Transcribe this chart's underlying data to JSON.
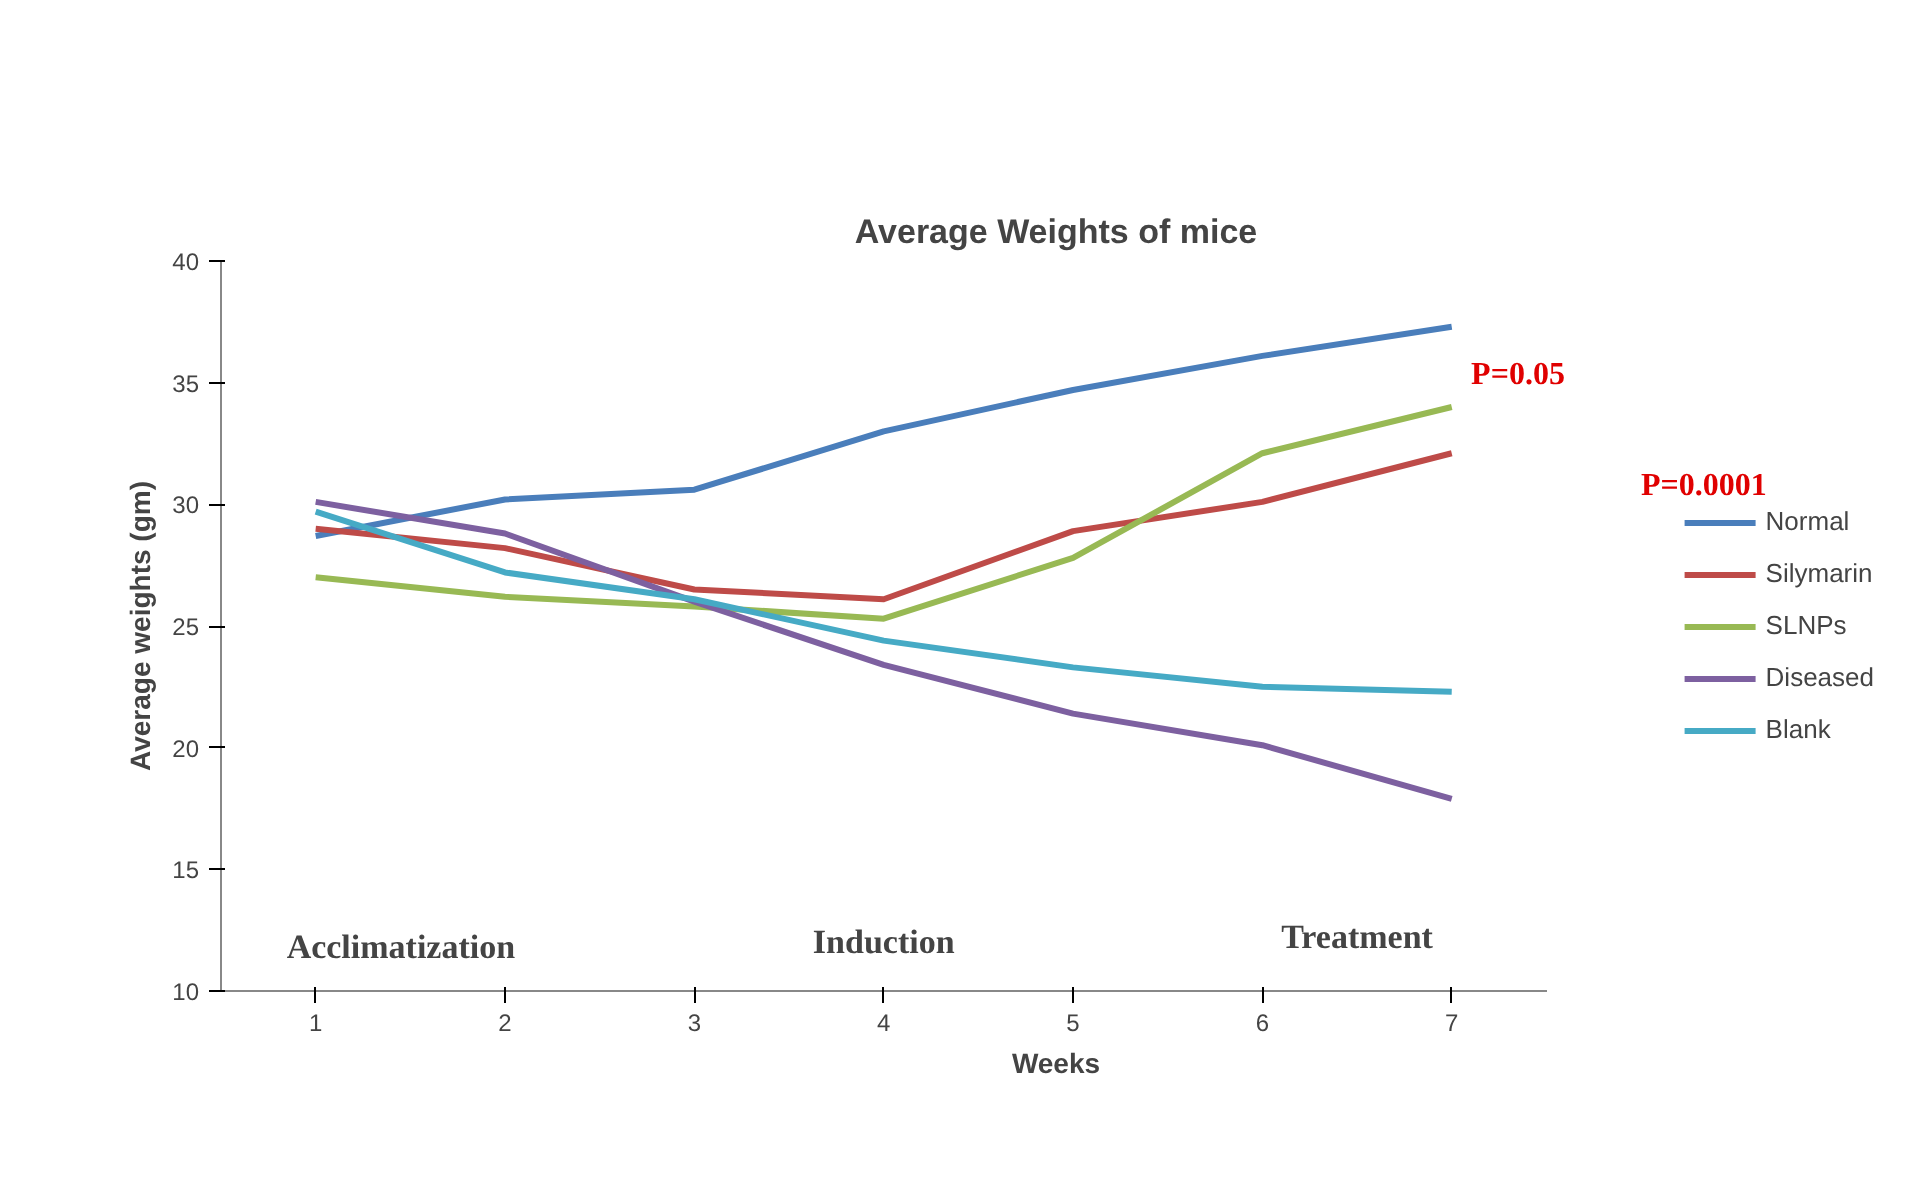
{
  "chart_data": {
    "type": "line",
    "title": "Average Weights of mice",
    "xlabel": "Weeks",
    "ylabel": "Average weights (gm)",
    "x": [
      1,
      2,
      3,
      4,
      5,
      6,
      7
    ],
    "xlim": [
      0.5,
      7.5
    ],
    "xticks": [
      1,
      2,
      3,
      4,
      5,
      6,
      7
    ],
    "ylim": [
      10,
      40
    ],
    "yticks": [
      10,
      15,
      20,
      25,
      30,
      35,
      40
    ],
    "series": [
      {
        "name": "Normal",
        "color": "#4a7ebb",
        "values": [
          28.7,
          30.2,
          30.6,
          33.0,
          34.7,
          36.1,
          37.3
        ]
      },
      {
        "name": "Silymarin",
        "color": "#be4b48",
        "values": [
          29.0,
          28.2,
          26.5,
          26.1,
          28.9,
          30.1,
          32.1
        ]
      },
      {
        "name": "SLNPs",
        "color": "#98b954",
        "values": [
          27.0,
          26.2,
          25.8,
          25.3,
          27.8,
          32.1,
          34.0
        ]
      },
      {
        "name": "Diseased",
        "color": "#7d60a0",
        "values": [
          30.1,
          28.8,
          26.0,
          23.4,
          21.4,
          20.1,
          17.9
        ]
      },
      {
        "name": "Blank",
        "color": "#46aac5",
        "values": [
          29.7,
          27.2,
          26.1,
          24.4,
          23.3,
          22.5,
          22.3
        ]
      }
    ],
    "annotations": [
      "Acclimatization",
      "Induction",
      "Treatment",
      "P=0.05",
      "P=0.0001"
    ],
    "grid": false,
    "legend": "right",
    "marker": "none",
    "line_style": "solid"
  }
}
